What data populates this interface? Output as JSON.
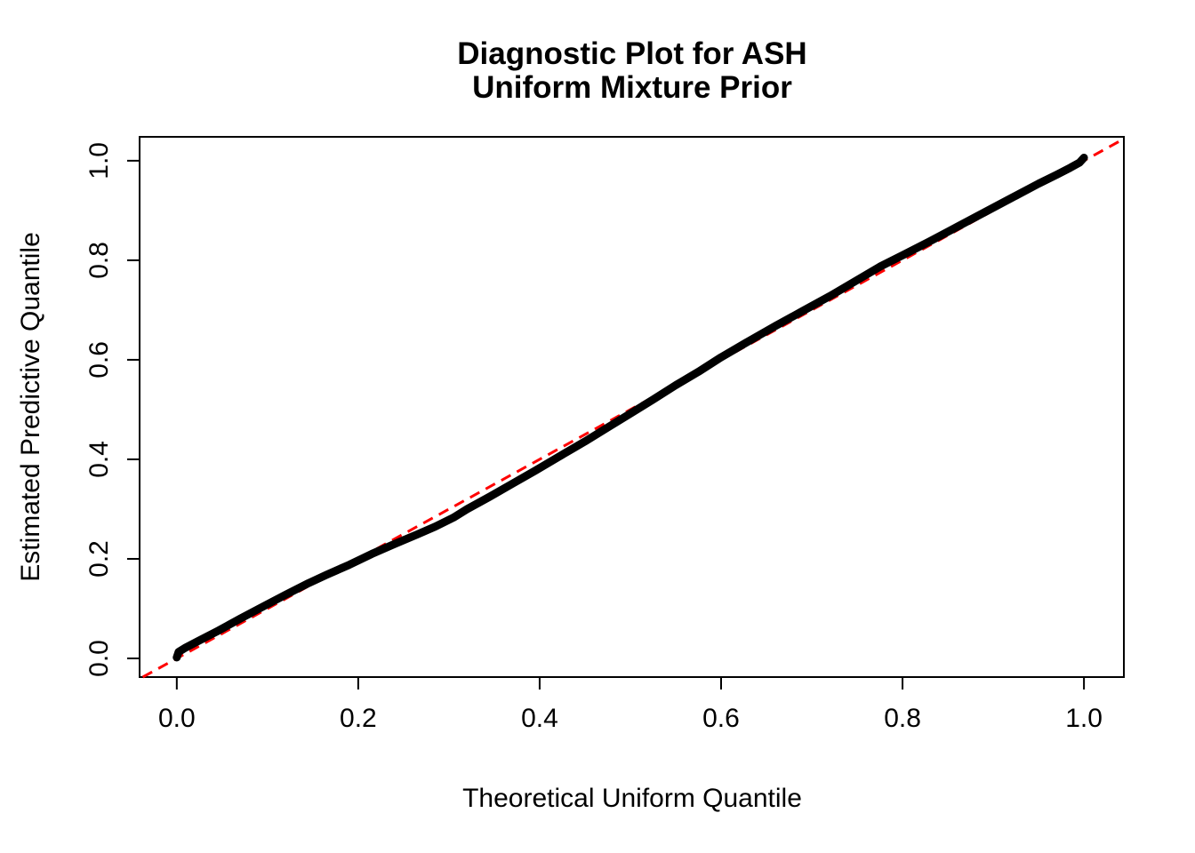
{
  "figure": {
    "background": "#ffffff"
  },
  "chart_data": {
    "type": "line",
    "title_lines": [
      "Diagnostic Plot for ASH",
      "Uniform Mixture Prior"
    ],
    "xlabel": "Theoretical Uniform Quantile",
    "ylabel": "Estimated Predictive Quantile",
    "xlim": [
      -0.041,
      1.044
    ],
    "ylim": [
      -0.0375,
      1.048
    ],
    "grid": false,
    "legend": "none",
    "xticks": {
      "values": [
        0.0,
        0.2,
        0.4,
        0.6,
        0.8,
        1.0
      ],
      "labels": [
        "0.0",
        "0.2",
        "0.4",
        "0.6",
        "0.8",
        "1.0"
      ]
    },
    "yticks": {
      "values": [
        0.0,
        0.2,
        0.4,
        0.6,
        0.8,
        1.0
      ],
      "labels": [
        "0.0",
        "0.2",
        "0.4",
        "0.6",
        "0.8",
        "1.0"
      ]
    },
    "series": [
      {
        "name": "estimated-predictive-quantile-curve",
        "color": "#000000",
        "linewidth": 9,
        "points": [
          [
            0.0,
            0.002
          ],
          [
            0.002,
            0.013
          ],
          [
            0.01,
            0.022
          ],
          [
            0.025,
            0.036
          ],
          [
            0.045,
            0.055
          ],
          [
            0.07,
            0.08
          ],
          [
            0.095,
            0.104
          ],
          [
            0.12,
            0.128
          ],
          [
            0.145,
            0.151
          ],
          [
            0.165,
            0.168
          ],
          [
            0.19,
            0.188
          ],
          [
            0.215,
            0.21
          ],
          [
            0.24,
            0.23
          ],
          [
            0.265,
            0.249
          ],
          [
            0.285,
            0.265
          ],
          [
            0.305,
            0.283
          ],
          [
            0.32,
            0.3
          ],
          [
            0.345,
            0.325
          ],
          [
            0.37,
            0.351
          ],
          [
            0.395,
            0.377
          ],
          [
            0.42,
            0.404
          ],
          [
            0.45,
            0.436
          ],
          [
            0.475,
            0.464
          ],
          [
            0.5,
            0.492
          ],
          [
            0.525,
            0.52
          ],
          [
            0.55,
            0.549
          ],
          [
            0.575,
            0.576
          ],
          [
            0.6,
            0.605
          ],
          [
            0.63,
            0.637
          ],
          [
            0.66,
            0.668
          ],
          [
            0.69,
            0.698
          ],
          [
            0.72,
            0.728
          ],
          [
            0.75,
            0.76
          ],
          [
            0.775,
            0.787
          ],
          [
            0.8,
            0.81
          ],
          [
            0.83,
            0.838
          ],
          [
            0.86,
            0.867
          ],
          [
            0.89,
            0.896
          ],
          [
            0.92,
            0.925
          ],
          [
            0.95,
            0.954
          ],
          [
            0.97,
            0.972
          ],
          [
            0.985,
            0.986
          ],
          [
            0.995,
            0.996
          ],
          [
            1.0,
            1.006
          ]
        ]
      }
    ],
    "reference_line": {
      "name": "identity-line-y-equals-x",
      "slope": 1,
      "intercept": 0,
      "color": "#FF0000",
      "style": "dashed",
      "linewidth": 3
    }
  }
}
